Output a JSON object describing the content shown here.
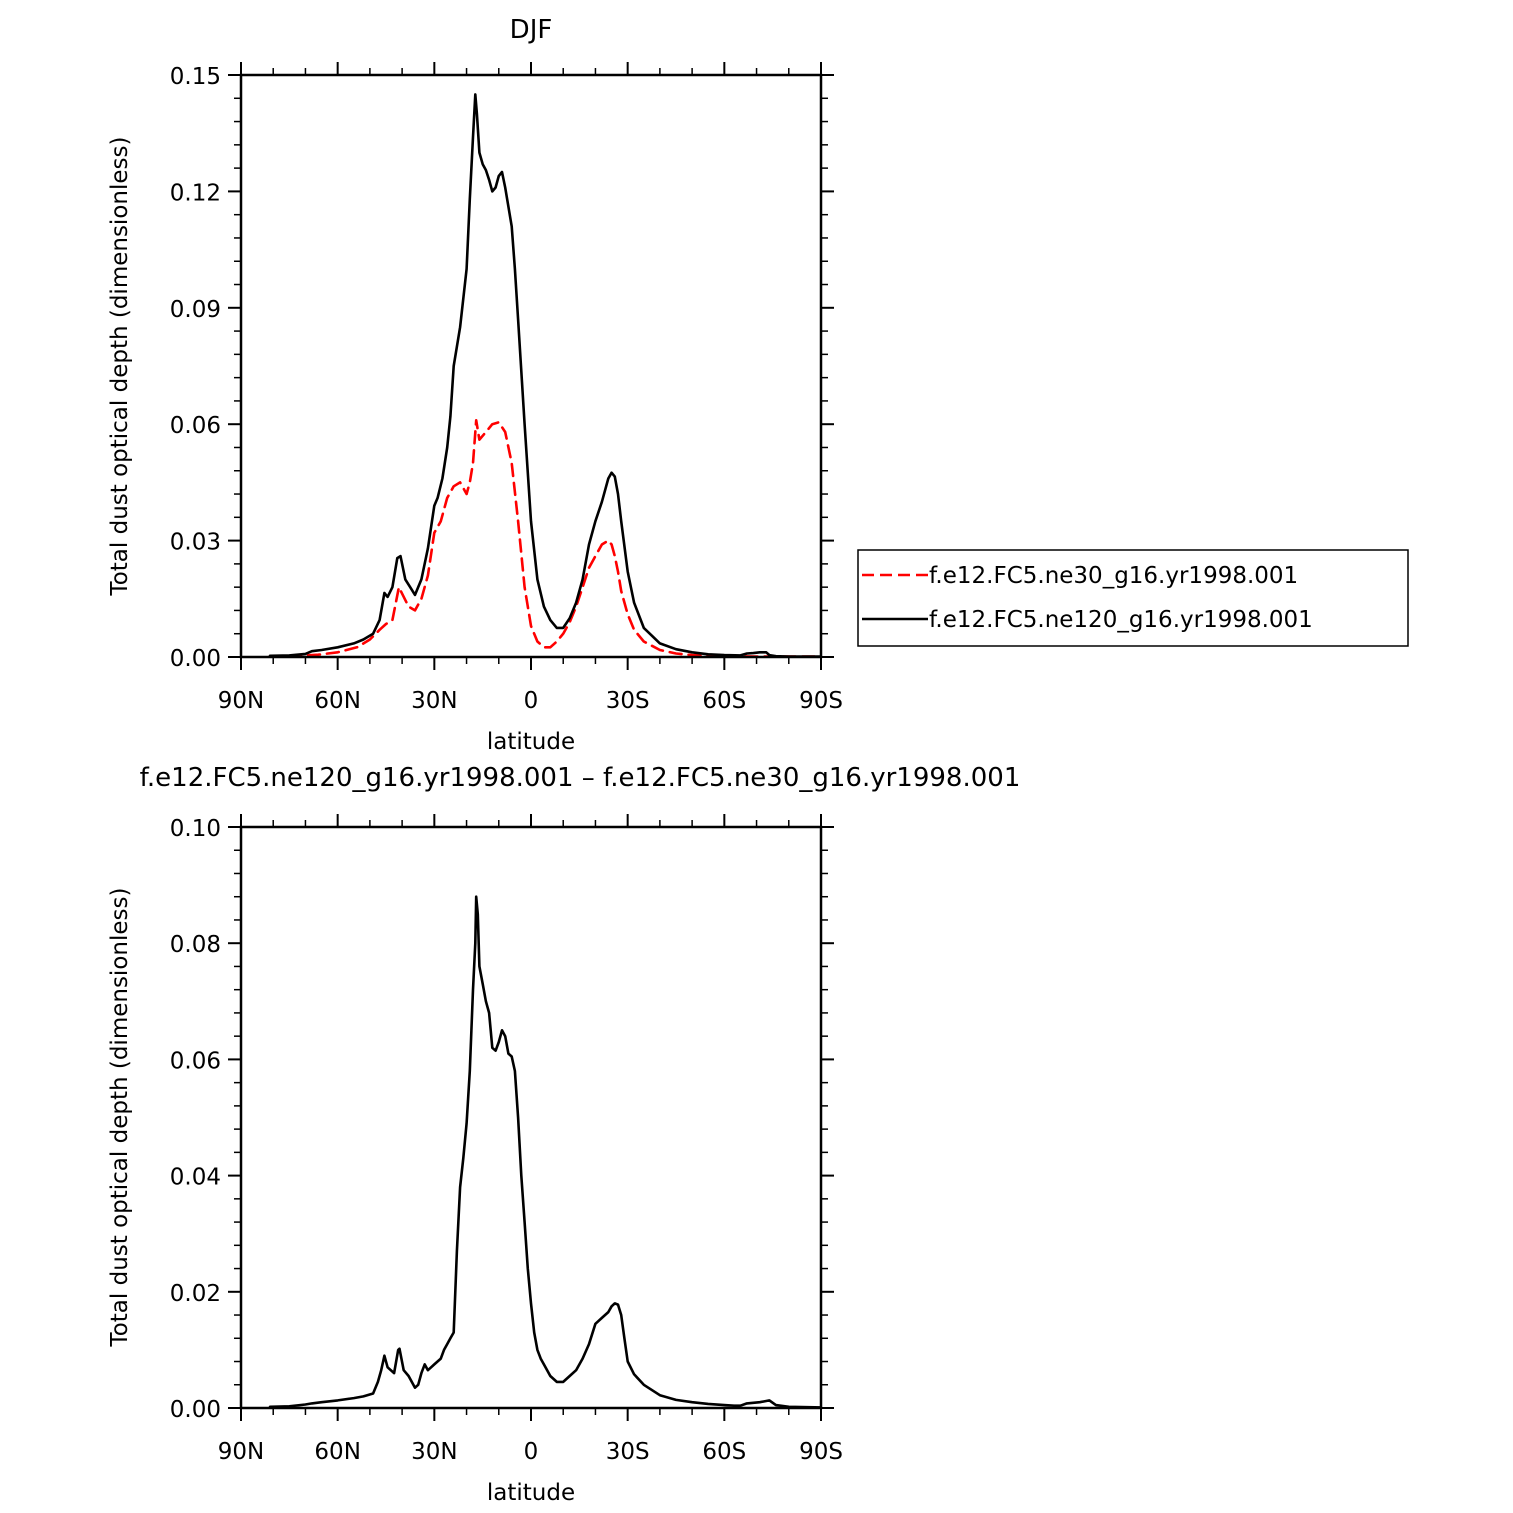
{
  "chart_data": [
    {
      "type": "line",
      "title": "DJF",
      "xlabel": "latitude",
      "ylabel": "Total dust optical depth (dimensionless)",
      "xlim": [
        90,
        -90
      ],
      "ylim": [
        0,
        0.15
      ],
      "xticks": [
        90,
        60,
        30,
        0,
        -30,
        -60,
        -90
      ],
      "xtick_labels": [
        "90N",
        "60N",
        "30N",
        "0",
        "30S",
        "60S",
        "90S"
      ],
      "yticks": [
        0,
        0.03,
        0.06,
        0.09,
        0.12,
        0.15
      ],
      "ytick_labels": [
        "0.00",
        "0.03",
        "0.06",
        "0.09",
        "0.12",
        "0.15"
      ],
      "legend_position": "right",
      "series": [
        {
          "name": "f.e12.FC5.ne30_g16.yr1998.001",
          "color": "#ff0000",
          "dash": "dashed",
          "x": [
            81,
            72,
            66,
            60,
            54,
            50,
            47,
            45,
            43,
            41,
            38,
            36,
            34,
            32,
            30,
            28,
            26,
            24,
            22,
            20,
            19,
            18,
            17,
            16,
            14,
            12,
            10,
            8,
            6,
            4,
            2,
            0,
            -2,
            -4,
            -6,
            -8,
            -10,
            -12,
            -14,
            -16,
            -18,
            -20,
            -22,
            -24,
            -25,
            -26,
            -27,
            -28,
            -30,
            -32,
            -35,
            -40,
            -45,
            -50,
            -60,
            -70,
            -80,
            -90
          ],
          "y": [
            0.0002,
            0.0003,
            0.0006,
            0.0012,
            0.0025,
            0.0045,
            0.007,
            0.0085,
            0.0095,
            0.018,
            0.013,
            0.012,
            0.015,
            0.021,
            0.032,
            0.035,
            0.041,
            0.044,
            0.045,
            0.042,
            0.045,
            0.05,
            0.061,
            0.056,
            0.058,
            0.06,
            0.0605,
            0.058,
            0.05,
            0.035,
            0.018,
            0.008,
            0.004,
            0.0025,
            0.0025,
            0.004,
            0.006,
            0.009,
            0.013,
            0.018,
            0.023,
            0.026,
            0.029,
            0.03,
            0.029,
            0.026,
            0.022,
            0.017,
            0.011,
            0.007,
            0.004,
            0.0018,
            0.0009,
            0.0005,
            0.0002,
            0.0001,
            0.0001,
            0.0001
          ]
        },
        {
          "name": "f.e12.FC5.ne120_g16.yr1998.001",
          "color": "#000000",
          "dash": "solid",
          "x": [
            81,
            75,
            70,
            68,
            65,
            60,
            55,
            52,
            49,
            47,
            45.5,
            44.5,
            43,
            41.5,
            40.5,
            39,
            37.5,
            36,
            34,
            32,
            30,
            29,
            27.5,
            26,
            25,
            24,
            22,
            20,
            19,
            18,
            17.3,
            16.8,
            16,
            15,
            14,
            13,
            12,
            11,
            10,
            9,
            8,
            6,
            5,
            4,
            2,
            0,
            -2,
            -4,
            -6,
            -8,
            -10,
            -12,
            -14,
            -16,
            -18,
            -20,
            -22,
            -24,
            -25,
            -26,
            -27,
            -28,
            -30,
            -32,
            -35,
            -40,
            -45,
            -50,
            -55,
            -60,
            -65,
            -67,
            -69,
            -71,
            -73,
            -74,
            -76,
            -80,
            -90
          ],
          "y": [
            0.0003,
            0.0004,
            0.0008,
            0.0015,
            0.0018,
            0.0025,
            0.0035,
            0.0045,
            0.006,
            0.0095,
            0.0165,
            0.0155,
            0.018,
            0.0255,
            0.026,
            0.02,
            0.018,
            0.016,
            0.02,
            0.028,
            0.039,
            0.041,
            0.046,
            0.054,
            0.062,
            0.075,
            0.085,
            0.1,
            0.118,
            0.134,
            0.145,
            0.14,
            0.13,
            0.127,
            0.1255,
            0.123,
            0.12,
            0.121,
            0.124,
            0.125,
            0.121,
            0.111,
            0.1,
            0.087,
            0.06,
            0.035,
            0.02,
            0.013,
            0.0095,
            0.0075,
            0.0075,
            0.01,
            0.014,
            0.02,
            0.029,
            0.035,
            0.04,
            0.046,
            0.0475,
            0.0465,
            0.042,
            0.035,
            0.022,
            0.014,
            0.0075,
            0.0035,
            0.002,
            0.0012,
            0.0007,
            0.0005,
            0.0004,
            0.0009,
            0.001,
            0.0012,
            0.0012,
            0.0005,
            0.0002,
            0.0001,
            0.0001
          ]
        }
      ]
    },
    {
      "type": "line",
      "title": "f.e12.FC5.ne120_g16.yr1998.001 – f.e12.FC5.ne30_g16.yr1998.001",
      "xlabel": "latitude",
      "ylabel": "Total dust optical depth (dimensionless)",
      "xlim": [
        90,
        -90
      ],
      "ylim": [
        0,
        0.1
      ],
      "xticks": [
        90,
        60,
        30,
        0,
        -30,
        -60,
        -90
      ],
      "xtick_labels": [
        "90N",
        "60N",
        "30N",
        "0",
        "30S",
        "60S",
        "90S"
      ],
      "yticks": [
        0,
        0.02,
        0.04,
        0.06,
        0.08,
        0.1
      ],
      "ytick_labels": [
        "0.00",
        "0.02",
        "0.04",
        "0.06",
        "0.08",
        "0.10"
      ],
      "series": [
        {
          "color": "#000000",
          "dash": "solid",
          "x": [
            81,
            75,
            70,
            68,
            65,
            60,
            55,
            52,
            49,
            47.5,
            46.5,
            45.5,
            44.5,
            43.5,
            42.5,
            41.2,
            40.8,
            39.5,
            38,
            37,
            36,
            35,
            34,
            33,
            32,
            31,
            30,
            28,
            27,
            26,
            25,
            24,
            23,
            22,
            21,
            20,
            19,
            18.5,
            18,
            17.3,
            17,
            16.5,
            16,
            15,
            14,
            13,
            12.5,
            12,
            11,
            10,
            9,
            8,
            7,
            6,
            5,
            4,
            3,
            2,
            1,
            0,
            -1,
            -2,
            -3,
            -4,
            -6,
            -8,
            -10,
            -12,
            -14,
            -16,
            -18,
            -20,
            -22,
            -24,
            -25,
            -26,
            -27,
            -28,
            -29,
            -30,
            -32,
            -35,
            -40,
            -45,
            -50,
            -55,
            -60,
            -63,
            -65,
            -67,
            -69,
            -71,
            -73,
            -74,
            -76,
            -80,
            -90
          ],
          "y": [
            0.0002,
            0.0003,
            0.0006,
            0.0008,
            0.001,
            0.0013,
            0.0017,
            0.002,
            0.0025,
            0.0045,
            0.0065,
            0.009,
            0.007,
            0.0065,
            0.006,
            0.01,
            0.0102,
            0.0065,
            0.0055,
            0.0045,
            0.0035,
            0.004,
            0.006,
            0.0075,
            0.0065,
            0.007,
            0.0075,
            0.0085,
            0.01,
            0.011,
            0.012,
            0.013,
            0.027,
            0.038,
            0.043,
            0.049,
            0.058,
            0.065,
            0.072,
            0.08,
            0.088,
            0.085,
            0.076,
            0.073,
            0.07,
            0.068,
            0.065,
            0.062,
            0.0615,
            0.063,
            0.065,
            0.064,
            0.061,
            0.0605,
            0.058,
            0.05,
            0.04,
            0.032,
            0.024,
            0.018,
            0.013,
            0.01,
            0.0085,
            0.0075,
            0.0055,
            0.0045,
            0.0045,
            0.0055,
            0.0065,
            0.0085,
            0.011,
            0.0145,
            0.0155,
            0.0165,
            0.0175,
            0.018,
            0.0178,
            0.016,
            0.012,
            0.008,
            0.0058,
            0.004,
            0.0022,
            0.0014,
            0.001,
            0.0007,
            0.0005,
            0.0004,
            0.0004,
            0.0008,
            0.0009,
            0.001,
            0.0012,
            0.0013,
            0.0005,
            0.0002,
            0.0001
          ]
        }
      ]
    }
  ]
}
